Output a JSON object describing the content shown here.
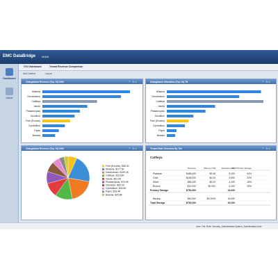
{
  "app": {
    "title": "EMC DataBridge",
    "version": "v1.0.0"
  },
  "nav": [
    "Dashboard",
    "Admin"
  ],
  "tabs": [
    "CIO Dashboard",
    "Tenant Revenue Comparison"
  ],
  "toolbar": [
    "Add Content",
    "Layout"
  ],
  "panels": [
    {
      "title": "Chargeback Revenue (Top 10) USD",
      "chart": {
        "type": "bar",
        "categories": [
          "Wisteria",
          "Dendrobium",
          "Cattleya",
          "Vanda",
          "Phalaenopsis",
          "Oncidium",
          "Free (Excess)",
          "Cymbidium",
          "Papin",
          "Brassia"
        ],
        "values": [
          177.5,
          159.3,
          110.8,
          91.0,
          75.9,
          65.3,
          56.2,
          45.5,
          33.4,
          25.8
        ],
        "colors": [
          "#2e86de",
          "#2e86de",
          "#8a9bb0",
          "#2e86de",
          "#2e86de",
          "#2e86de",
          "#f5c518",
          "#2e86de",
          "#2e86de",
          "#2e86de"
        ]
      }
    },
    {
      "title": "Chargeback Allocation (Top 10) TB",
      "chart": {
        "type": "bar",
        "categories": [
          "Wisteria",
          "Dendrobium",
          "Cattleya",
          "Vanda",
          "Phalaenopsis",
          "Oncidium",
          "Free (Excess)",
          "Cymbidium",
          "Papin",
          "Brassia"
        ],
        "values": [
          78,
          60,
          80,
          40,
          32,
          22,
          18,
          15,
          8,
          7
        ],
        "colors": [
          "#2e86de",
          "#2e86de",
          "#8a9bb0",
          "#2e86de",
          "#2e86de",
          "#2e86de",
          "#f5c518",
          "#2e86de",
          "#2e86de",
          "#2e86de"
        ]
      }
    },
    {
      "title": "Chargeback Revenue (Top 10) USD",
      "chart": {
        "type": "pie",
        "values": [
          56.2,
          177.5,
          159.3,
          110.8,
          91.0,
          75.9,
          65.3,
          45.5,
          33.4,
          25.8
        ],
        "value_labels": [
          "Free (Excess), $56.2K",
          "Wisteria, $177.5K",
          "Dendrobium, $159.3K",
          "Cattleya, $110.8K",
          "Vanda, $91.0K",
          "Phalaenopsis, $75.9K",
          "Oncidium, $65.3K",
          "Cymbidium, $45.5K",
          "Papin, $33.4K",
          "Brassia, $25.8K"
        ],
        "colors": [
          "#f7c31b",
          "#3b8fd9",
          "#f07b22",
          "#54b848",
          "#e23c3c",
          "#8f59b8",
          "#8a5a3c",
          "#e78ad2",
          "#8a8a8a",
          "#c9c93a"
        ]
      }
    },
    {
      "title": "Tenant Rate Overview By Tier",
      "table": {
        "heading": "Cattleya",
        "columns": [
          null,
          "Revenue",
          "Rate per GB",
          "Allocated (GB)",
          "% of Primary Storage"
        ],
        "rows": [
          [
            "Platinum",
            "$486,000",
            "$0.06",
            "8,100",
            "34%"
          ],
          [
            "Gold",
            "$168,000",
            "$0.03",
            "5,600",
            "23%"
          ],
          [
            "Silver",
            "$84,000",
            "$0.02",
            "4,200",
            "18%"
          ],
          [
            "Bronze",
            "$12,000",
            "$0.002",
            "6,100",
            "25%"
          ],
          [
            "Primary Storage",
            "$750,000",
            null,
            "24,000",
            null
          ],
          [
            "Backup",
            "$40,000",
            "$0.0025",
            "16,000",
            null
          ],
          [
            "Total Storage",
            "$790,000",
            null,
            "40,000",
            null
          ]
        ]
      }
    }
  ],
  "footer": {
    "user": "User: Pat",
    "role": "Role: Security_Administrator,System_Administrator,User"
  }
}
